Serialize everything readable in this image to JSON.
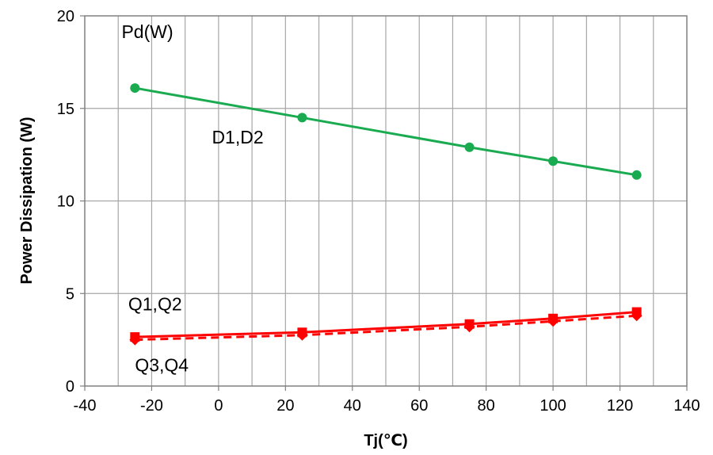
{
  "chart_data": {
    "type": "line",
    "title": "",
    "xlabel": "Tj(℃)",
    "ylabel": "Power Dissipation (W)",
    "xlim": [
      -40,
      140
    ],
    "ylim": [
      0,
      20
    ],
    "x_major_ticks": [
      -40,
      -20,
      0,
      20,
      40,
      60,
      80,
      100,
      120,
      140
    ],
    "x_minor_step": 10,
    "y_major_ticks": [
      0,
      5,
      10,
      15,
      20
    ],
    "grid": true,
    "legend": "none",
    "annotations": [
      {
        "text": "Pd(W)",
        "x": -29,
        "y": 18.8
      },
      {
        "text": "D1,D2",
        "x": -2,
        "y": 13.1
      },
      {
        "text": "Q1,Q2",
        "x": -27,
        "y": 4.1
      },
      {
        "text": "Q3,Q4",
        "x": -25,
        "y": 0.8
      }
    ],
    "series": [
      {
        "name": "D1,D2",
        "color": "#1aab50",
        "marker": "circle",
        "dash": "solid",
        "x": [
          -25,
          25,
          75,
          100,
          125
        ],
        "values": [
          16.1,
          14.5,
          12.9,
          12.15,
          11.4
        ]
      },
      {
        "name": "Q1,Q2",
        "color": "#ff0000",
        "marker": "square",
        "dash": "solid",
        "x": [
          -25,
          25,
          75,
          100,
          125
        ],
        "values": [
          2.65,
          2.9,
          3.35,
          3.65,
          4.0
        ]
      },
      {
        "name": "Q3,Q4",
        "color": "#ff0000",
        "marker": "diamond",
        "dash": "dashed",
        "x": [
          -25,
          25,
          75,
          100,
          125
        ],
        "values": [
          2.5,
          2.75,
          3.2,
          3.5,
          3.8
        ]
      }
    ]
  }
}
